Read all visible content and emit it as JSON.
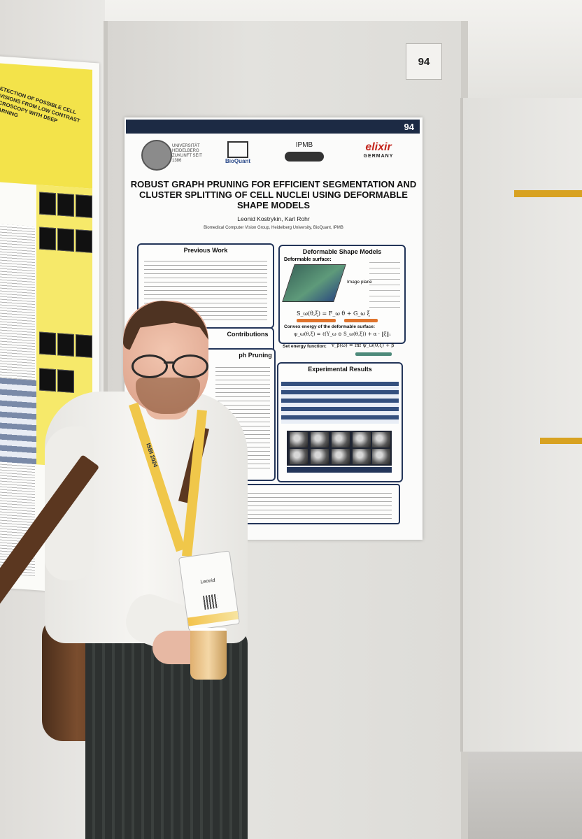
{
  "board": {
    "number": "94"
  },
  "poster": {
    "number": "94",
    "logos": {
      "heidelberg": "UNIVERSITÄT HEIDELBERG ZUKUNFT SEIT 1386",
      "bioquant": "BioQuant",
      "ipmb": "IPMB",
      "elixir": "elixir",
      "elixir_sub": "GERMANY"
    },
    "title": "ROBUST GRAPH PRUNING FOR EFFICIENT SEGMENTATION AND CLUSTER SPLITTING OF CELL NUCLEI USING DEFORMABLE SHAPE MODELS",
    "authors": "Leonid Kostrykin, Karl Rohr",
    "affiliation": "Biomedical Computer Vision Group, Heidelberg University, BioQuant, IPMB",
    "sections": {
      "previous_work": "Previous Work",
      "deformable_shape_models": "Deformable Shape Models",
      "deformable_surface": "Deformable surface:",
      "image_plane": "Image plane",
      "convex_energy": "Convex energy of the deformable surface:",
      "set_energy": "Set energy function:",
      "contributions": "Contributions",
      "graph_pruning": "ph Pruning",
      "experimental_results": "Experimental Results"
    },
    "formulas": {
      "surface": "S_ω(θ,ξ) = F_ω θ + G_ω ξ",
      "convex": "ψ_ω(θ,ξ) = ℓ(Y_ω ⊙ S_ω(θ,ξ)) + α · ‖ξ‖₁",
      "set_energy": "v_β(ω) = inf ψ_ω(θ,ξ) + β"
    }
  },
  "left_poster": {
    "title": "DETECTION OF POSSIBLE CELL DIVISIONS FROM LOW CONTRAST MICROSCOPY WITH DEEP LEARNING"
  },
  "badge": {
    "name": "Leonid"
  },
  "lanyard": {
    "text": "ISBI 2024"
  }
}
